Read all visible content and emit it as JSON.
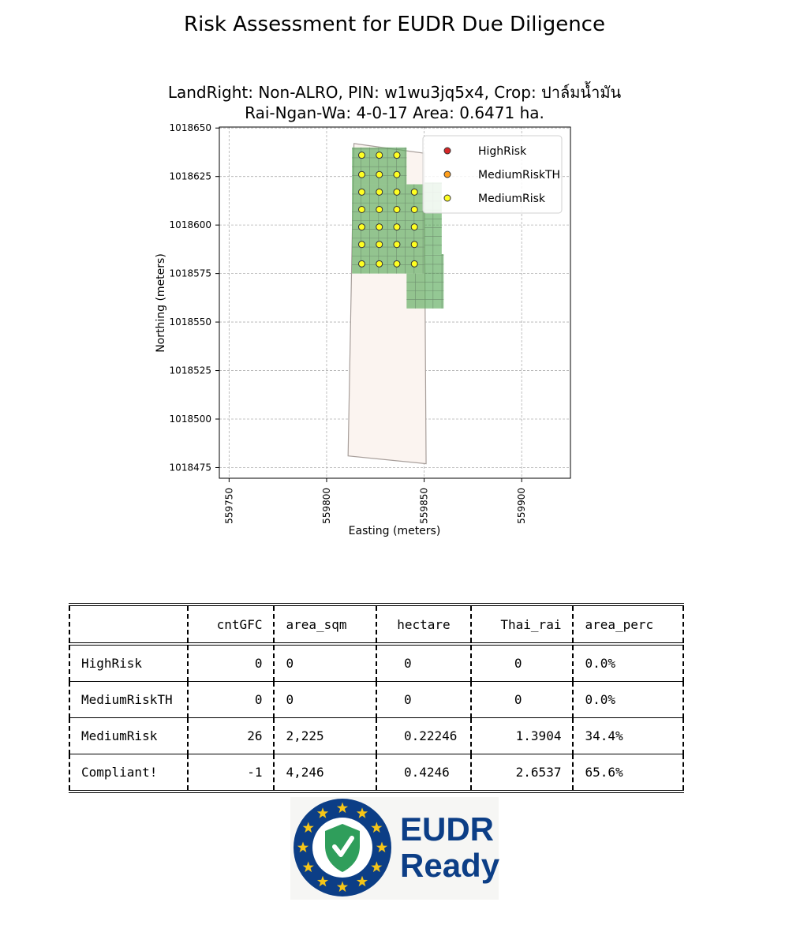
{
  "suptitle": "Risk Assessment for EUDR Due Diligence",
  "plot_title_line1": "LandRight: Non-ALRO,  PIN: w1wu3jq5x4,  Crop: ปาล์มน้ำมัน",
  "plot_title_line2": "Rai-Ngan-Wa: 4-0-17    Area: 0.6471 ha.",
  "colors": {
    "high_risk": "#d62728",
    "medium_risk_th": "#ff9f1c",
    "medium_risk": "#ffff22",
    "grid_cell": "#5aaa5a",
    "parcel_fill": "#fbf4f0",
    "parcel_edge": "#a79e9a"
  },
  "chart_data": {
    "type": "scatter",
    "xlabel": "Easting (meters)",
    "ylabel": "Northing (meters)",
    "xlim": [
      559745,
      559925
    ],
    "ylim": [
      1018469.5,
      1018650.5
    ],
    "xticks": [
      559750,
      559800,
      559850,
      559900
    ],
    "yticks": [
      1018475,
      1018500,
      1018525,
      1018550,
      1018575,
      1018600,
      1018625,
      1018650
    ],
    "grid": true,
    "legend_position": "top-right",
    "legend": [
      "HighRisk",
      "MediumRiskTH",
      "MediumRisk"
    ],
    "parcel_polygon": [
      [
        559814,
        1018642
      ],
      [
        559850,
        1018637
      ],
      [
        559851,
        1018477
      ],
      [
        559811,
        1018481
      ]
    ],
    "grid_cells": [
      {
        "x": [
          559813,
          559841
        ],
        "y": [
          1018621,
          1018640
        ]
      },
      {
        "x": [
          559813,
          559850
        ],
        "y": [
          1018575,
          1018621
        ]
      },
      {
        "x": [
          559850,
          559859
        ],
        "y": [
          1018585,
          1018622
        ]
      },
      {
        "x": [
          559850,
          559860
        ],
        "y": [
          1018557,
          1018585
        ]
      },
      {
        "x": [
          559841,
          559850
        ],
        "y": [
          1018557,
          1018575
        ]
      }
    ],
    "series": [
      {
        "name": "HighRisk",
        "points": []
      },
      {
        "name": "MediumRiskTH",
        "points": []
      },
      {
        "name": "MediumRisk",
        "points": [
          [
            559818,
            1018636
          ],
          [
            559827,
            1018636
          ],
          [
            559836,
            1018636
          ],
          [
            559818,
            1018626
          ],
          [
            559827,
            1018626
          ],
          [
            559836,
            1018626
          ],
          [
            559818,
            1018617
          ],
          [
            559827,
            1018617
          ],
          [
            559836,
            1018617
          ],
          [
            559845,
            1018617
          ],
          [
            559818,
            1018608
          ],
          [
            559827,
            1018608
          ],
          [
            559836,
            1018608
          ],
          [
            559845,
            1018608
          ],
          [
            559818,
            1018599
          ],
          [
            559827,
            1018599
          ],
          [
            559836,
            1018599
          ],
          [
            559845,
            1018599
          ],
          [
            559818,
            1018590
          ],
          [
            559827,
            1018590
          ],
          [
            559836,
            1018590
          ],
          [
            559845,
            1018590
          ],
          [
            559818,
            1018580
          ],
          [
            559827,
            1018580
          ],
          [
            559836,
            1018580
          ],
          [
            559845,
            1018580
          ]
        ]
      }
    ]
  },
  "table": {
    "headers": [
      "",
      "cntGFC",
      "area_sqm",
      "hectare",
      "Thai_rai",
      "area_perc"
    ],
    "rows": [
      [
        "HighRisk",
        "0",
        "0",
        "0",
        "0",
        "0.0%"
      ],
      [
        "MediumRiskTH",
        "0",
        "0",
        "0",
        "0",
        "0.0%"
      ],
      [
        "MediumRisk",
        "26",
        "2,225",
        "0.22246",
        "1.3904",
        "34.4%"
      ],
      [
        "Compliant!",
        "-1",
        "4,246",
        "0.4246",
        "2.6537",
        "65.6%"
      ]
    ]
  },
  "logo": {
    "line1": "EUDR",
    "line2": "Ready"
  }
}
